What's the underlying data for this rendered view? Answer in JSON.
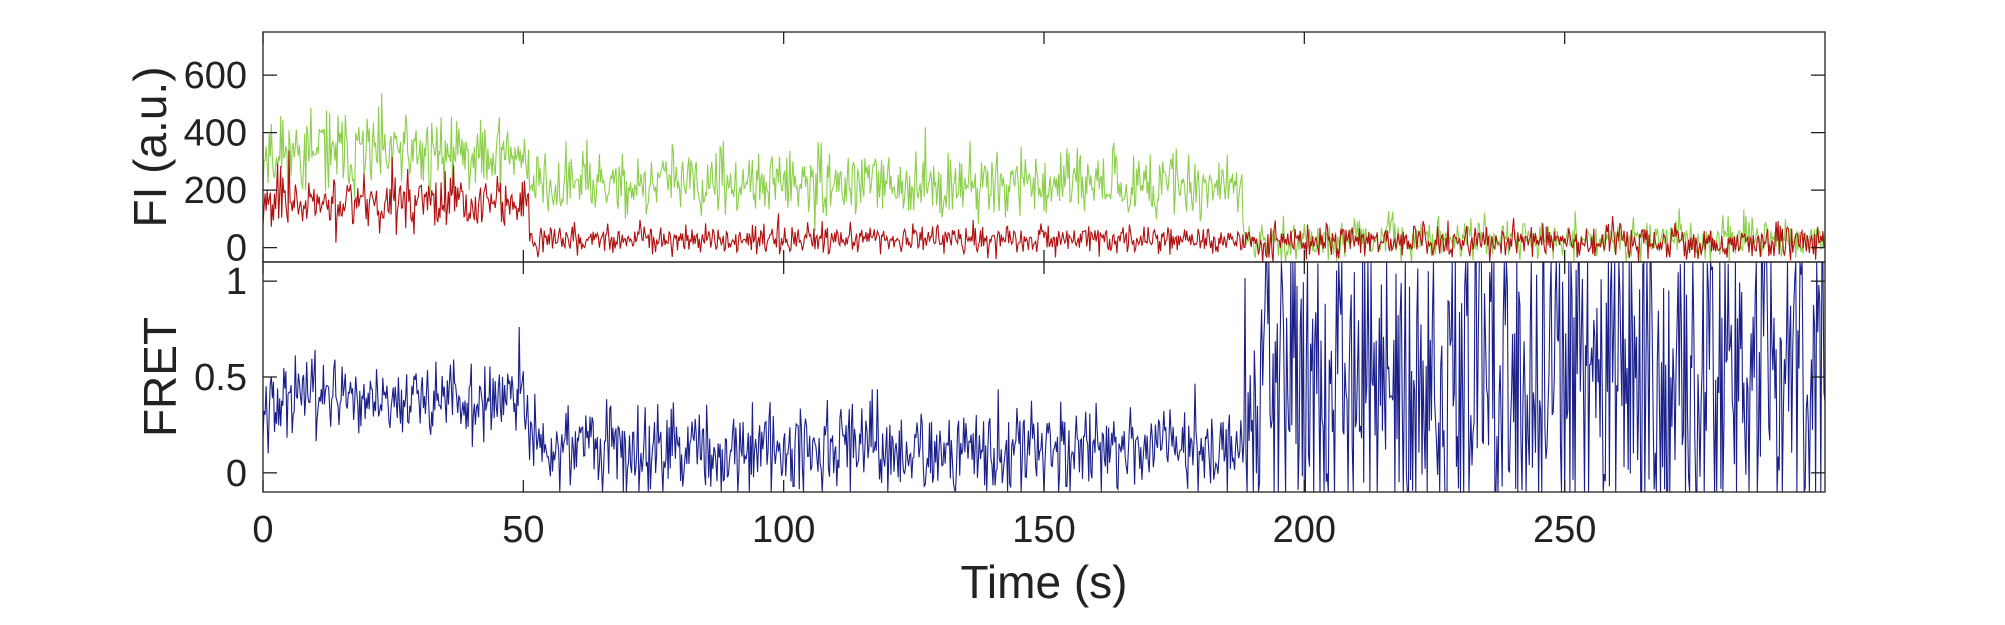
{
  "chart_data": [
    {
      "panel": "top",
      "type": "line",
      "ylabel": "FI (a.u.)",
      "xlim": [
        0,
        300
      ],
      "ylim": [
        -50,
        750
      ],
      "yticks": [
        0,
        200,
        400,
        600
      ],
      "yticklabels": [
        "0",
        "200",
        "400",
        "600"
      ],
      "grid": false,
      "series": [
        {
          "color": "#8ccf4a",
          "segments": [
            {
              "x_start": 0,
              "x_end": 51,
              "mean": 330,
              "noise": 70
            },
            {
              "x_start": 51,
              "x_end": 188,
              "mean": 220,
              "noise": 55
            },
            {
              "x_start": 188,
              "x_end": 300,
              "mean": 30,
              "noise": 35
            }
          ]
        },
        {
          "color": "#b01010",
          "segments": [
            {
              "x_start": 0,
              "x_end": 51,
              "mean": 160,
              "noise": 50
            },
            {
              "x_start": 51,
              "x_end": 188,
              "mean": 30,
              "noise": 25
            },
            {
              "x_start": 188,
              "x_end": 300,
              "mean": 20,
              "noise": 30
            }
          ]
        }
      ]
    },
    {
      "panel": "bottom",
      "type": "line",
      "ylabel": "FRET",
      "xlabel": "Time (s)",
      "xlim": [
        0,
        300
      ],
      "ylim": [
        -0.1,
        1.1
      ],
      "yticks": [
        0,
        0.5,
        1
      ],
      "yticklabels": [
        "0",
        "0.5",
        "1"
      ],
      "xticks": [
        0,
        50,
        100,
        150,
        200,
        250
      ],
      "xticklabels": [
        "0",
        "50",
        "100",
        "150",
        "200",
        "250"
      ],
      "grid": false,
      "series": [
        {
          "color": "#1a1f8a",
          "segments": [
            {
              "x_start": 0,
              "x_end": 51,
              "mean": 0.38,
              "noise": 0.1
            },
            {
              "x_start": 51,
              "x_end": 188,
              "mean": 0.12,
              "noise": 0.12
            },
            {
              "x_start": 188,
              "x_end": 300,
              "mean": 0.45,
              "noise": 0.5
            }
          ]
        }
      ]
    }
  ]
}
